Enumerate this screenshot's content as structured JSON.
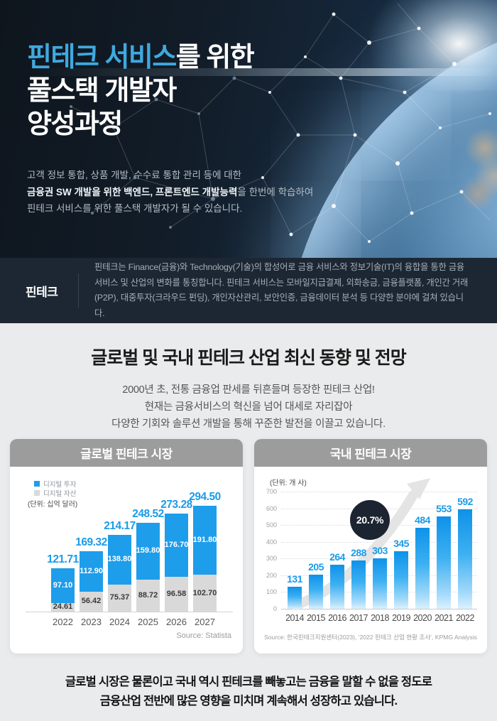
{
  "hero": {
    "title_highlight": "핀테크 서비스",
    "title_line1_rest": "를 위한",
    "title_line2": "풀스택 개발자",
    "title_line3": "양성과정",
    "desc_line1": "고객 정보 통합, 상품 개발, 수수료 통합 관리 등에 대한",
    "desc_line2_bold": "금융권 SW 개발을 위한 백엔드, 프론트엔드 개발능력",
    "desc_line2_rest": "을 한번에 학습하여",
    "desc_line3": "핀테크 서비스를 위한 풀스택 개발자가 될 수 있습니다."
  },
  "definition": {
    "term": "핀테크",
    "text": "핀테크는 Finance(금융)와 Technology(기술)의 합성어로 금융 서비스와 정보기술(IT)의 융합을 통한 금융서비스 및 산업의 변화를 통칭합니다. 핀테크 서비스는 모바일지급결제, 외화송금, 금융플랫폼, 개인간 거래(P2P), 대중투자(크라우드 펀딩), 개인자산관리, 보안인증, 금융데이터 분석 등 다양한 분야에 걸쳐 있습니다."
  },
  "section": {
    "heading": "글로벌 및 국내 핀테크 산업 최신 동향 및 전망",
    "intro_line1": "2000년 초, 전통 금융업 판세를 뒤흔들며 등장한 핀테크 산업!",
    "intro_line2": "현재는 금융서비스의 혁신을 넘어 대세로 자리잡아",
    "intro_line3": "다양한 기회와 솔루션 개발을 통해 꾸준한 발전을 이끌고 있습니다."
  },
  "chart_data": [
    {
      "type": "bar",
      "stacked": true,
      "title": "글로벌 핀테크 시장",
      "unit_label": "(단위: 십억 달러)",
      "categories": [
        "2022",
        "2023",
        "2024",
        "2025",
        "2026",
        "2027"
      ],
      "series": [
        {
          "name": "디지털 투자",
          "color": "#1e9deb",
          "values": [
            97.1,
            112.9,
            138.8,
            159.8,
            176.7,
            191.8
          ],
          "labels": [
            "97.10",
            "112.90",
            "138.80",
            "159.80",
            "176.70",
            "191.80"
          ]
        },
        {
          "name": "디지털 자산",
          "color": "#d9d9d9",
          "values": [
            24.61,
            56.42,
            75.37,
            88.72,
            96.58,
            102.7
          ],
          "labels": [
            "24.61",
            "56.42",
            "75.37",
            "88.72",
            "96.58",
            "102.70"
          ]
        }
      ],
      "totals": [
        121.71,
        169.32,
        214.17,
        248.52,
        273.28,
        294.5
      ],
      "total_labels": [
        "121.71",
        "169.32",
        "214.17",
        "248.52",
        "273.28",
        "294.50"
      ],
      "legend_position": "top-left",
      "grid": false,
      "source": "Source: Statista"
    },
    {
      "type": "bar",
      "title": "국내 핀테크 시장",
      "unit_label": "(단위: 개 사)",
      "categories": [
        "2014",
        "2015",
        "2016",
        "2017",
        "2018",
        "2019",
        "2020",
        "2021",
        "2022"
      ],
      "values": [
        131,
        205,
        264,
        288,
        303,
        345,
        484,
        553,
        592
      ],
      "value_labels": [
        "131",
        "205",
        "264",
        "288",
        "303",
        "345",
        "484",
        "553",
        "592"
      ],
      "ylim": [
        0,
        700
      ],
      "yticks": [
        0,
        100,
        200,
        300,
        400,
        500,
        600,
        700
      ],
      "grid": true,
      "annotation": "20.7%",
      "source": "Source: 한국핀테크지원센터(2023), '2022 핀테크 산업 현황 조사', KPMG Analysis"
    }
  ],
  "footer": {
    "line1": "글로벌 시장은 물론이고 국내 역시 핀테크를 빼놓고는 금융을 말할 수 없을 정도로",
    "line2": "금융산업 전반에 많은 영향을 미치며 계속해서 성장하고 있습니다."
  },
  "colors": {
    "accent_blue": "#3fa9e0",
    "chart_blue": "#1e9deb",
    "chart_gray": "#d9d9d9",
    "value_label_blue": "#1b9be8",
    "badge_bg": "#1b2430",
    "card_header_bg": "#9c9c9c",
    "dark_band_bg": "#1c2733",
    "page_bg": "#eaebec"
  }
}
